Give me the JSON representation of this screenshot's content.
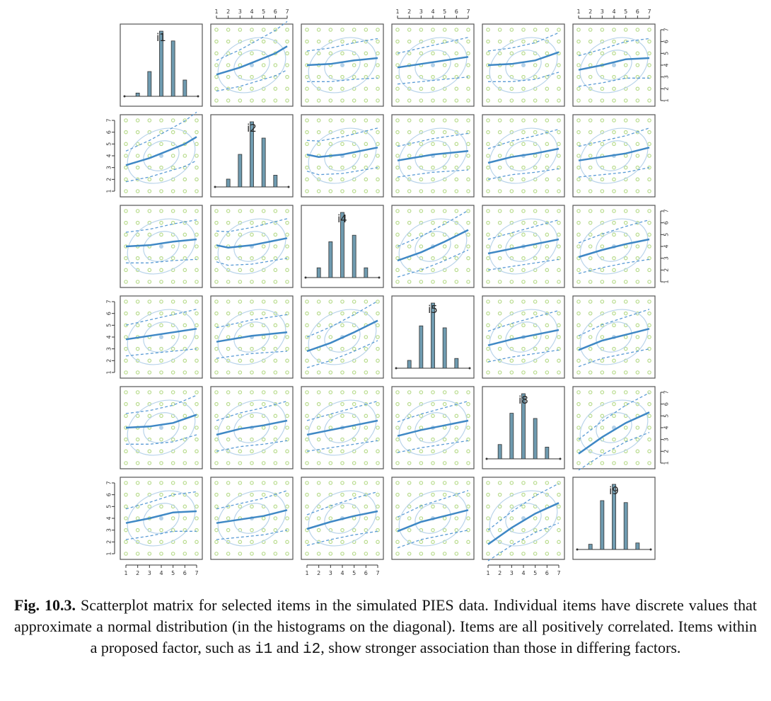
{
  "figure": {
    "label": "Fig. 10.3.",
    "caption_parts": [
      " Scatterplot matrix for selected items in the simulated PIES data. Individual items have discrete values that approximate a normal distribution (in the histograms on the diagonal). Items are all positively correlated. Items within a proposed factor, such as ",
      "i1",
      " and ",
      "i2",
      ", show stronger association than those in differing factors."
    ]
  },
  "colors": {
    "points": "#b9dc8e",
    "smoother": "#3f88c5",
    "spread": "#5b9bd5",
    "ellipse": "#b8d3ea",
    "bar_fill": "#6f9bb0",
    "frame": "#555555"
  },
  "chart_data": {
    "type": "scatterplot-matrix",
    "variables": [
      "i1",
      "i2",
      "i4",
      "i5",
      "i8",
      "i9"
    ],
    "axis_ticks": [
      1,
      2,
      3,
      4,
      5,
      6,
      7
    ],
    "axis_range": [
      1,
      7
    ],
    "diagonal": {
      "type": "histogram",
      "categories": [
        1,
        2,
        3,
        4,
        5,
        6,
        7
      ],
      "relative_heights": {
        "i1": [
          0.05,
          0.38,
          1.0,
          0.85,
          0.25
        ],
        "i2": [
          0.12,
          0.5,
          1.0,
          0.75,
          0.18
        ],
        "i4": [
          0.15,
          0.55,
          1.0,
          0.65,
          0.15
        ],
        "i5": [
          0.12,
          0.65,
          1.0,
          0.62,
          0.15
        ],
        "i8": [
          0.22,
          0.7,
          1.0,
          0.62,
          0.18
        ],
        "i9": [
          0.08,
          0.75,
          1.0,
          0.72,
          0.1
        ]
      },
      "bar_positions": [
        2,
        3,
        4,
        5,
        6
      ]
    },
    "smoother_lines": {
      "i1~i2": [
        [
          1,
          3.2
        ],
        [
          2,
          3.5
        ],
        [
          3,
          3.8
        ],
        [
          4,
          4.2
        ],
        [
          5,
          4.6
        ],
        [
          6,
          5.0
        ],
        [
          7,
          5.6
        ]
      ],
      "i1~i4": [
        [
          1,
          4.0
        ],
        [
          3,
          4.1
        ],
        [
          5,
          4.4
        ],
        [
          7,
          4.6
        ]
      ],
      "i1~i5": [
        [
          1,
          3.8
        ],
        [
          3,
          4.1
        ],
        [
          5,
          4.4
        ],
        [
          7,
          4.7
        ]
      ],
      "i1~i8": [
        [
          1,
          4.0
        ],
        [
          3,
          4.1
        ],
        [
          5,
          4.4
        ],
        [
          7,
          5.1
        ]
      ],
      "i1~i9": [
        [
          1,
          3.6
        ],
        [
          3,
          4.0
        ],
        [
          5,
          4.5
        ],
        [
          7,
          4.6
        ]
      ],
      "i2~i4": [
        [
          1,
          4.1
        ],
        [
          2,
          3.9
        ],
        [
          4,
          4.1
        ],
        [
          7,
          4.7
        ]
      ],
      "i2~i5": [
        [
          1,
          3.6
        ],
        [
          4,
          4.1
        ],
        [
          7,
          4.4
        ]
      ],
      "i2~i8": [
        [
          1,
          3.4
        ],
        [
          3,
          3.9
        ],
        [
          5,
          4.2
        ],
        [
          7,
          4.6
        ]
      ],
      "i2~i9": [
        [
          1,
          3.6
        ],
        [
          3,
          3.9
        ],
        [
          5,
          4.2
        ],
        [
          7,
          4.7
        ]
      ],
      "i4~i5": [
        [
          1,
          2.8
        ],
        [
          3,
          3.5
        ],
        [
          5,
          4.4
        ],
        [
          7,
          5.4
        ]
      ],
      "i4~i8": [
        [
          1,
          3.4
        ],
        [
          3,
          3.8
        ],
        [
          5,
          4.2
        ],
        [
          7,
          4.6
        ]
      ],
      "i4~i9": [
        [
          1,
          3.1
        ],
        [
          3,
          3.7
        ],
        [
          5,
          4.2
        ],
        [
          7,
          4.6
        ]
      ],
      "i5~i8": [
        [
          1,
          3.3
        ],
        [
          3,
          3.8
        ],
        [
          5,
          4.2
        ],
        [
          7,
          4.6
        ]
      ],
      "i5~i9": [
        [
          1,
          2.9
        ],
        [
          3,
          3.7
        ],
        [
          5,
          4.2
        ],
        [
          7,
          4.7
        ]
      ],
      "i8~i9": [
        [
          1,
          1.8
        ],
        [
          3,
          3.2
        ],
        [
          5,
          4.4
        ],
        [
          7,
          5.3
        ]
      ]
    }
  }
}
